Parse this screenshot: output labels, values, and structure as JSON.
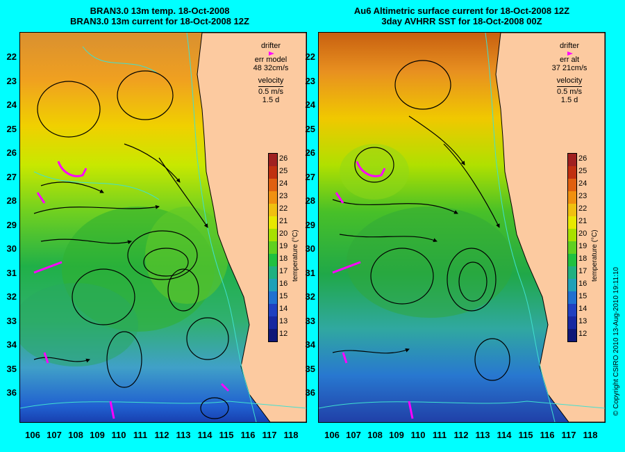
{
  "left_panel": {
    "title_line1": "BRAN3.0 13m temp. 18-Oct-2008",
    "title_line2": "BRAN3.0 13m current for 18-Oct-2008 12Z",
    "legend": {
      "drifter": "drifter",
      "err_label": "err model",
      "err_value": "48 32cm/s",
      "velocity": "velocity",
      "speed": "0.5 m/s",
      "time": "1.5 d"
    }
  },
  "right_panel": {
    "title_line1": "Au6 Altimetric surface current for 18-Oct-2008 12Z",
    "title_line2": "3day AVHRR SST for 18-Oct-2008 00Z",
    "legend": {
      "drifter": "drifter",
      "err_label": "err alt",
      "err_value": "37 21cm/s",
      "velocity": "velocity",
      "speed": "0.5 m/s",
      "time": "1.5 d"
    }
  },
  "latitude_labels": [
    "22",
    "23",
    "24",
    "25",
    "26",
    "27",
    "28",
    "29",
    "30",
    "31",
    "32",
    "33",
    "34",
    "35",
    "36"
  ],
  "longitude_labels": [
    "106",
    "107",
    "108",
    "109",
    "110",
    "111",
    "112",
    "113",
    "114",
    "115",
    "116",
    "117",
    "118"
  ],
  "colorbar": {
    "label": "temperature (°C)",
    "ticks": [
      "26",
      "25",
      "24",
      "23",
      "22",
      "21",
      "20",
      "19",
      "18",
      "17",
      "16",
      "15",
      "14",
      "13",
      "12"
    ],
    "min": 11.5,
    "max": 26.5
  },
  "copyright": "© Copyright CSIRO 2010  13-Aug-2010 19:11:10",
  "colors": {
    "background": "#00ffff",
    "land": "#fccaa0",
    "drifter": "#ff00ff",
    "bathymetry": "#40e0d0"
  }
}
